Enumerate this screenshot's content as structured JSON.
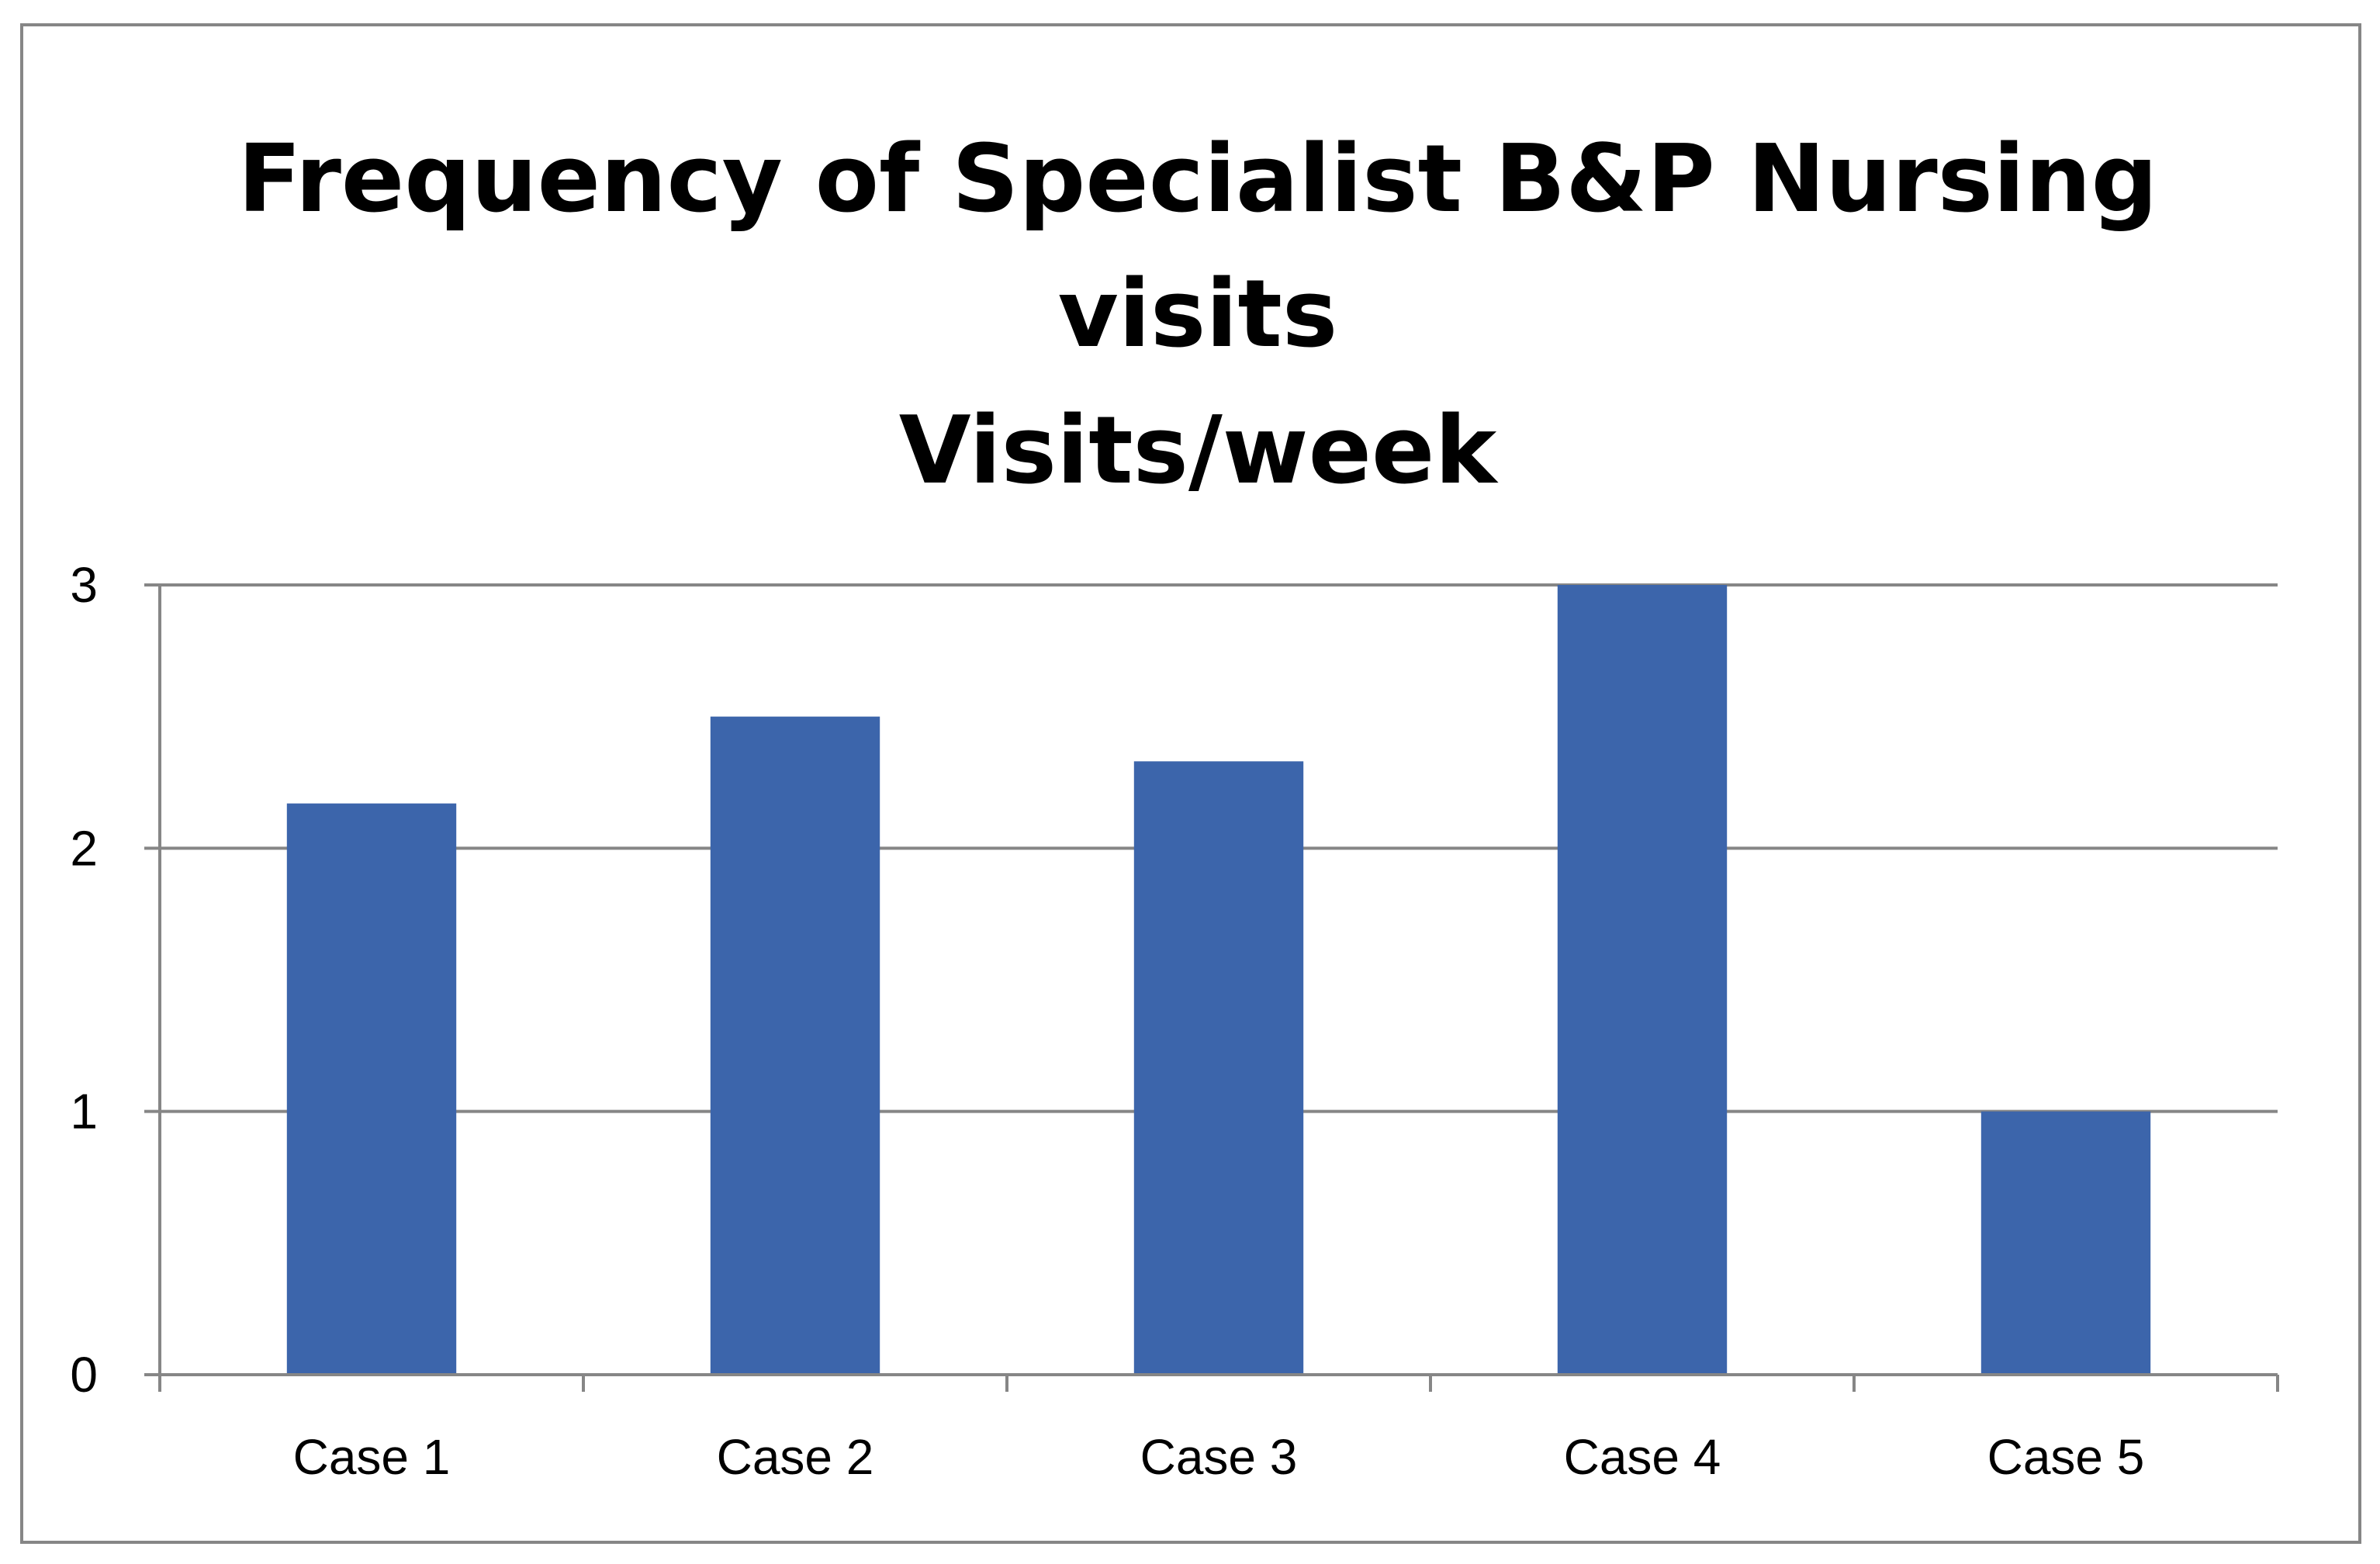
{
  "chart_data": {
    "type": "bar",
    "title": [
      "Frequency of Specialist B&P Nursing",
      "visits",
      "Visits/week"
    ],
    "xlabel": "",
    "ylabel": "",
    "categories": [
      "Case 1",
      "Case 2",
      "Case 3",
      "Case 4",
      "Case 5"
    ],
    "values": [
      2.17,
      2.5,
      2.33,
      3,
      1
    ],
    "ylim": [
      0,
      3
    ],
    "yticks": [
      "0",
      "1",
      "2",
      "3"
    ],
    "grid": true,
    "legend": "none",
    "bar_color": "#3C65AB",
    "grid_color": "#868686"
  }
}
